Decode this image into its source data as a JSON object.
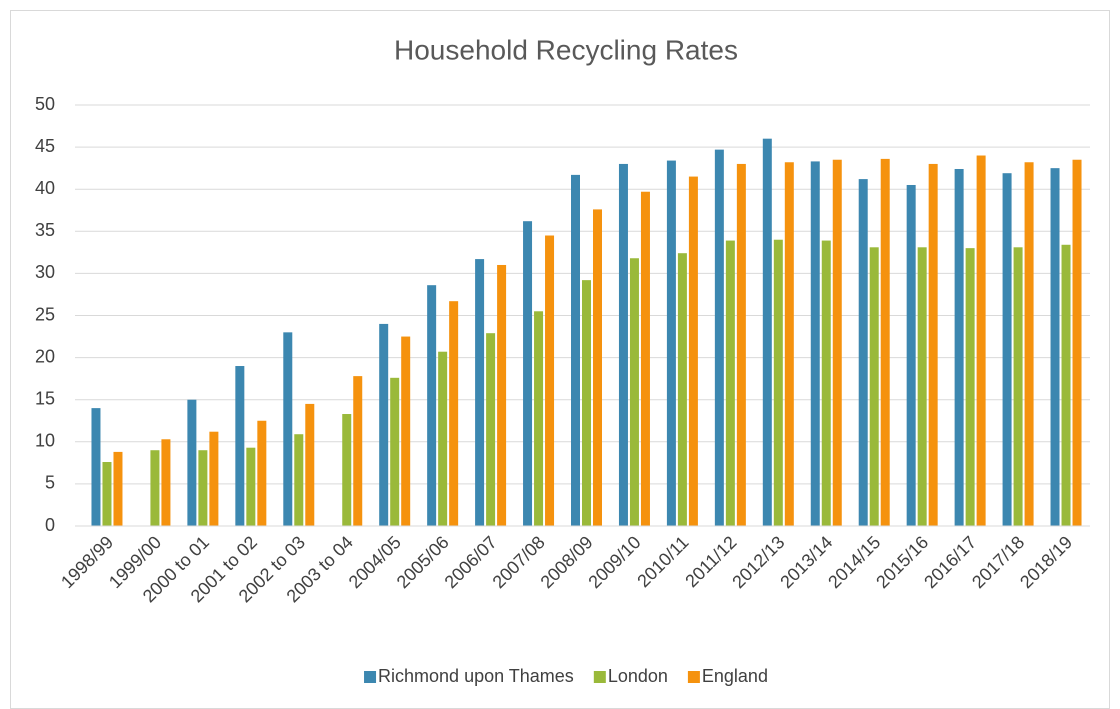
{
  "chart_data": {
    "type": "bar",
    "title": "Household Recycling Rates",
    "categories": [
      "1998/99",
      "1999/00",
      "2000 to 01",
      "2001 to 02",
      "2002 to 03",
      "2003 to 04",
      "2004/05",
      "2005/06",
      "2006/07",
      "2007/08",
      "2008/09",
      "2009/10",
      "2010/11",
      "2011/12",
      "2012/13",
      "2013/14",
      "2014/15",
      "2015/16",
      "2016/17",
      "2017/18",
      "2018/19"
    ],
    "series": [
      {
        "name": "Richmond upon Thames",
        "color": "#3c87b0",
        "values": [
          14,
          null,
          15,
          19,
          23,
          null,
          24,
          28.6,
          31.7,
          36.2,
          41.7,
          43,
          43.4,
          44.7,
          46,
          43.3,
          41.2,
          40.5,
          42.4,
          41.9,
          42.5
        ]
      },
      {
        "name": "London",
        "color": "#9ab93a",
        "values": [
          7.6,
          9,
          9,
          9.3,
          10.9,
          13.3,
          17.6,
          20.7,
          22.9,
          25.5,
          29.2,
          31.8,
          32.4,
          33.9,
          34,
          33.9,
          33.1,
          33.1,
          33,
          33.1,
          33.4
        ]
      },
      {
        "name": "England",
        "color": "#f5920e",
        "values": [
          8.8,
          10.3,
          11.2,
          12.5,
          14.5,
          17.8,
          22.5,
          26.7,
          31,
          34.5,
          37.6,
          39.7,
          41.5,
          43,
          43.2,
          43.5,
          43.6,
          43,
          44,
          43.2,
          43.5
        ]
      }
    ],
    "ylim": [
      0,
      50
    ],
    "yticks": [
      0,
      5,
      10,
      15,
      20,
      25,
      30,
      35,
      40,
      45,
      50
    ],
    "grid": true,
    "legend": "bottom"
  }
}
